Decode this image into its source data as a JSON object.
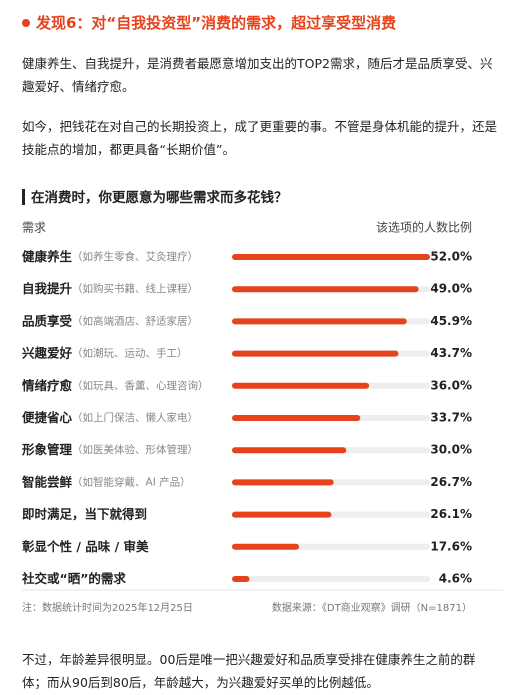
{
  "header": {
    "title": "发现6：对“自我投资型”消费的需求，超过享受型消费"
  },
  "paragraphs": [
    "健康养生、自我提升，是消费者最愿意增加支出的TOP2需求，随后才是品质享受、兴趣爱好、情绪疗愈。",
    "如今，把钱花在对自己的长期投资上，成了更重要的事。不管是身体机能的提升，还是技能点的增加，都更具备“长期价值”。"
  ],
  "chart_data": {
    "type": "bar",
    "orientation": "horizontal",
    "title": "在消费时，你更愿意为哪些需求而多花钱？",
    "category_header": "需求",
    "value_header": "该选项的人数比例",
    "categories": [
      "健康养生",
      "自我提升",
      "品质享受",
      "兴趣爱好",
      "情绪疗愈",
      "便捷省心",
      "形象管理",
      "智能尝鲜",
      "即时满足，当下就得到",
      "彰显个性 / 品味 / 审美",
      "社交或“晒”的需求"
    ],
    "category_notes": [
      "（如养生零食、艾灸理疗）",
      "（如购买书籍、线上课程）",
      "（如高端酒店、舒适家居）",
      "（如潮玩、运动、手工）",
      "（如玩具、香薰、心理咨询）",
      "（如上门保洁、懒人家电）",
      "（如医美体验、形体管理）",
      "（如智能穿戴、AI 产品）",
      null,
      null,
      null
    ],
    "values": [
      52.0,
      49.0,
      45.9,
      43.7,
      36.0,
      33.7,
      30.0,
      26.7,
      26.1,
      17.6,
      4.6
    ],
    "value_labels": [
      "52.0%",
      "49.0%",
      "45.9%",
      "43.7%",
      "36.0%",
      "33.7%",
      "30.0%",
      "26.7%",
      "26.1%",
      "17.6%",
      "4.6%"
    ],
    "xlim": [
      0,
      52
    ],
    "color": "#e5431c",
    "note": "注：数据统计时间为2025年12月25日",
    "source": "数据来源：《DT商业观察》调研（N=1871）"
  },
  "closing": "不过，年龄差异很明显。00后是唯一把兴趣爱好和品质享受排在健康养生之前的群体；而从90后到80后，年龄越大，为兴趣爱好买单的比例越低。"
}
